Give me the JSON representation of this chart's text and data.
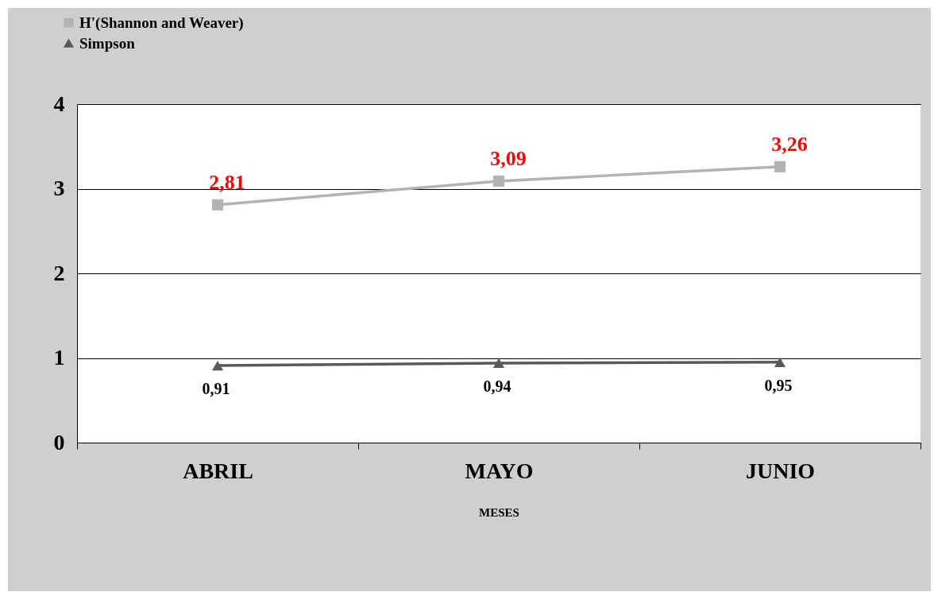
{
  "chart_data": {
    "type": "line",
    "categories": [
      "ABRIL",
      "MAYO",
      "JUNIO"
    ],
    "xlabel": "MESES",
    "series": [
      {
        "name": "H'(Shannon and Weaver)",
        "color": "#b3b3b3",
        "marker": "square",
        "values": [
          2.81,
          3.09,
          3.26
        ],
        "value_labels": [
          "2,81",
          "3,09",
          "3,26"
        ]
      },
      {
        "name": "Simpson",
        "color": "#595959",
        "marker": "triangle",
        "values": [
          0.91,
          0.94,
          0.95
        ],
        "value_labels": [
          "0,91",
          "0,94",
          "0,95"
        ]
      }
    ],
    "ylim": [
      0,
      4
    ],
    "yticks": [
      0,
      1,
      2,
      3,
      4
    ],
    "grid": "y",
    "legend": "top left"
  }
}
